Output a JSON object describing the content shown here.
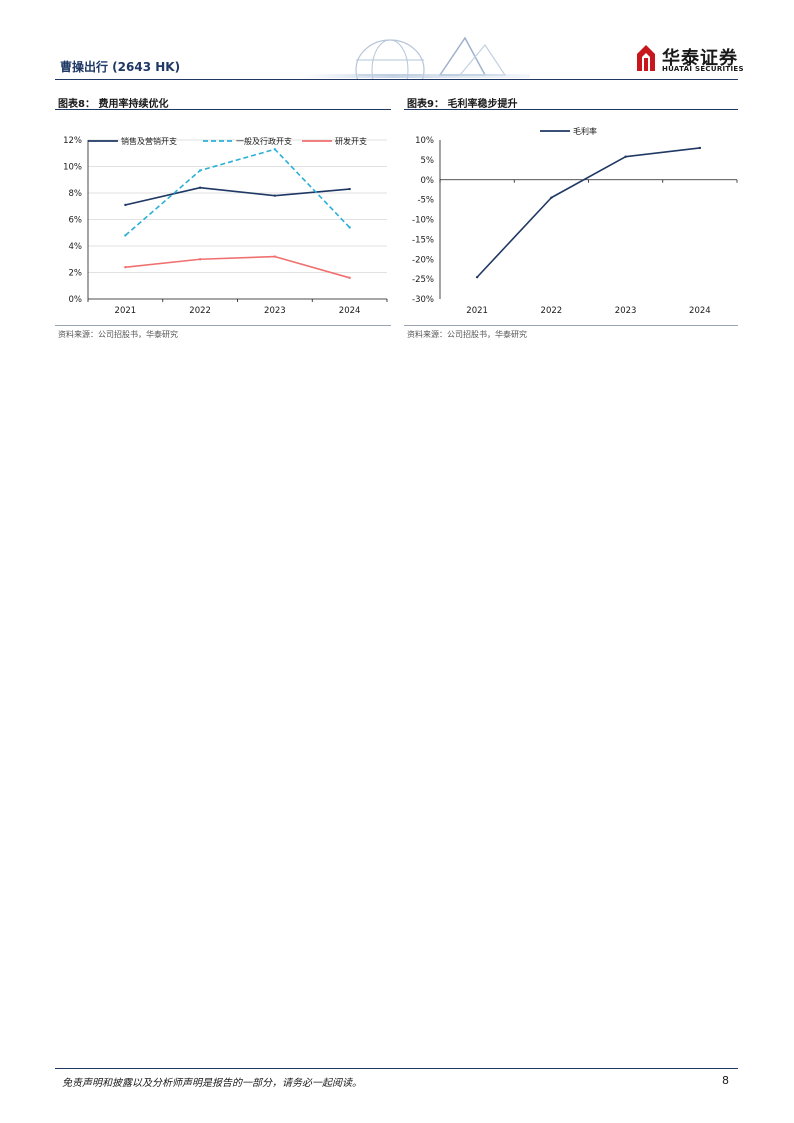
{
  "header": {
    "report_title": "曹操出行 (2643 HK)",
    "brand_cn": "华泰证券",
    "brand_en": "HUATAI SECURITIES",
    "brand_color": "#c8161d",
    "accent_color": "#1f3864"
  },
  "figures": [
    {
      "title": "图表8：  费用率持续优化",
      "source": "资料来源：公司招股书，华泰研究"
    },
    {
      "title": "图表9：  毛利率稳步提升",
      "source": "资料来源：公司招股书，华泰研究"
    }
  ],
  "chart_data": [
    {
      "type": "line",
      "title": "费用率持续优化",
      "categories": [
        "2021",
        "2022",
        "2023",
        "2024"
      ],
      "ylim": [
        0,
        12
      ],
      "yticks": [
        "0%",
        "2%",
        "4%",
        "6%",
        "8%",
        "10%",
        "12%"
      ],
      "ytick_values": [
        0,
        2,
        4,
        6,
        8,
        10,
        12
      ],
      "legend_position": "top",
      "series": [
        {
          "name": "销售及营销开支",
          "values": [
            7.1,
            8.4,
            7.8,
            8.3
          ],
          "color": "#1f3864",
          "style": "solid"
        },
        {
          "name": "一般及行政开支",
          "values": [
            4.8,
            9.7,
            11.3,
            5.4
          ],
          "color": "#2ab0d8",
          "style": "dashed"
        },
        {
          "name": "研发开支",
          "values": [
            2.4,
            3.0,
            3.2,
            1.6
          ],
          "color": "#f07070",
          "style": "solid"
        }
      ]
    },
    {
      "type": "line",
      "title": "毛利率稳步提升",
      "categories": [
        "2021",
        "2022",
        "2023",
        "2024"
      ],
      "ylim": [
        -30,
        10
      ],
      "yticks": [
        "-30%",
        "-25%",
        "-20%",
        "-15%",
        "-10%",
        "-5%",
        "0%",
        "5%",
        "10%"
      ],
      "ytick_values": [
        -30,
        -25,
        -20,
        -15,
        -10,
        -5,
        0,
        5,
        10
      ],
      "legend_position": "top-left",
      "series": [
        {
          "name": "毛利率",
          "values": [
            -24.5,
            -4.5,
            5.8,
            8.0
          ],
          "color": "#1f3864",
          "style": "solid"
        }
      ]
    }
  ],
  "footer": {
    "disclaimer": "免责声明和披露以及分析师声明是报告的一部分，请务必一起阅读。",
    "page_number": "8"
  }
}
